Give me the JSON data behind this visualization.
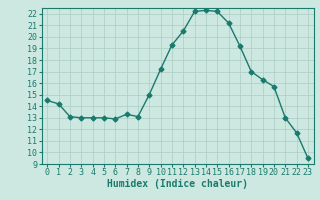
{
  "x": [
    0,
    1,
    2,
    3,
    4,
    5,
    6,
    7,
    8,
    9,
    10,
    11,
    12,
    13,
    14,
    15,
    16,
    17,
    18,
    19,
    20,
    21,
    22,
    23
  ],
  "y": [
    14.5,
    14.2,
    13.1,
    13.0,
    13.0,
    13.0,
    12.9,
    13.3,
    13.1,
    15.0,
    17.2,
    19.3,
    20.5,
    22.2,
    22.3,
    22.2,
    21.2,
    19.2,
    17.0,
    16.3,
    15.7,
    13.0,
    11.7,
    9.5
  ],
  "line_color": "#1a7a6e",
  "marker": "D",
  "marker_size": 2.5,
  "linewidth": 1.0,
  "bg_color": "#cce8e0",
  "grid_color": "#aaccC4",
  "xlabel": "Humidex (Indice chaleur)",
  "xlabel_fontsize": 7,
  "tick_fontsize": 6,
  "ylim": [
    9,
    22.5
  ],
  "xlim": [
    -0.5,
    23.5
  ],
  "yticks": [
    9,
    10,
    11,
    12,
    13,
    14,
    15,
    16,
    17,
    18,
    19,
    20,
    21,
    22
  ],
  "xticks": [
    0,
    1,
    2,
    3,
    4,
    5,
    6,
    7,
    8,
    9,
    10,
    11,
    12,
    13,
    14,
    15,
    16,
    17,
    18,
    19,
    20,
    21,
    22,
    23
  ]
}
